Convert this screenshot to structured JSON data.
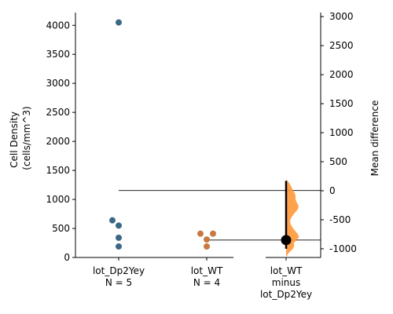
{
  "chart_data": {
    "type": "scatter",
    "left_axis": {
      "label_lines": [
        "Cell Density",
        "(cells/mm^3)"
      ],
      "ticks": [
        0,
        500,
        1000,
        1500,
        2000,
        2500,
        3000,
        3500,
        4000
      ],
      "ylim": [
        0,
        4220
      ]
    },
    "right_axis": {
      "label": "Mean difference",
      "ticks": [
        -1000,
        -500,
        0,
        500,
        1000,
        1500,
        2000,
        2500,
        3000
      ],
      "ylim": [
        -1150,
        3070
      ]
    },
    "groups": [
      {
        "label_lines": [
          "lot_Dp2Yey",
          "N = 5"
        ],
        "values": [
          4050,
          640,
          550,
          340,
          190
        ],
        "color": "#3b6887"
      },
      {
        "label_lines": [
          "lot_WT",
          "N = 4"
        ],
        "values": [
          410,
          410,
          310,
          190
        ],
        "color": "#c87840"
      }
    ],
    "comparison": {
      "label_lines": [
        "lot_WT",
        "minus",
        "lot_Dp2Yey"
      ],
      "mean_difference": -850,
      "ci": [
        -1000,
        170
      ],
      "reference_level": 1154,
      "distribution_color": "#ff9838",
      "bootstrap_density": [
        [
          -1130,
          0.02
        ],
        [
          -1090,
          0.08
        ],
        [
          -1050,
          0.16
        ],
        [
          -1000,
          0.29
        ],
        [
          -950,
          0.34
        ],
        [
          -900,
          0.33
        ],
        [
          -850,
          0.45
        ],
        [
          -800,
          0.55
        ],
        [
          -750,
          0.5
        ],
        [
          -700,
          0.4
        ],
        [
          -650,
          0.3
        ],
        [
          -600,
          0.22
        ],
        [
          -550,
          0.17
        ],
        [
          -500,
          0.18
        ],
        [
          -450,
          0.24
        ],
        [
          -400,
          0.33
        ],
        [
          -350,
          0.44
        ],
        [
          -300,
          0.52
        ],
        [
          -250,
          0.52
        ],
        [
          -200,
          0.45
        ],
        [
          -150,
          0.4
        ],
        [
          -100,
          0.4
        ],
        [
          -50,
          0.38
        ],
        [
          0,
          0.3
        ],
        [
          50,
          0.24
        ],
        [
          100,
          0.18
        ],
        [
          150,
          0.1
        ],
        [
          180,
          0.03
        ]
      ]
    }
  }
}
